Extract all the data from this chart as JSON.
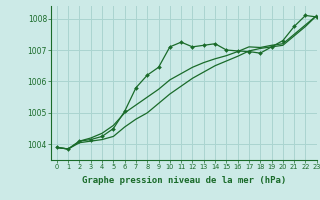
{
  "background_color": "#cceae7",
  "grid_color": "#aad4d0",
  "line_color": "#1a6b2a",
  "title": "Graphe pression niveau de la mer (hPa)",
  "xlim": [
    -0.5,
    23
  ],
  "ylim": [
    1003.5,
    1008.4
  ],
  "yticks": [
    1004,
    1005,
    1006,
    1007,
    1008
  ],
  "xticks": [
    0,
    1,
    2,
    3,
    4,
    5,
    6,
    7,
    8,
    9,
    10,
    11,
    12,
    13,
    14,
    15,
    16,
    17,
    18,
    19,
    20,
    21,
    22,
    23
  ],
  "series1_x": [
    0,
    1,
    2,
    3,
    4,
    5,
    6,
    7,
    8,
    9,
    10,
    11,
    12,
    13,
    14,
    15,
    16,
    17,
    18,
    19,
    20,
    21,
    22,
    23
  ],
  "series1_y": [
    1003.9,
    1003.85,
    1004.1,
    1004.15,
    1004.25,
    1004.5,
    1005.05,
    1005.8,
    1006.2,
    1006.45,
    1007.1,
    1007.25,
    1007.1,
    1007.15,
    1007.2,
    1007.0,
    1006.97,
    1006.95,
    1006.9,
    1007.1,
    1007.3,
    1007.75,
    1008.1,
    1008.05
  ],
  "series2_x": [
    0,
    1,
    2,
    3,
    4,
    5,
    6,
    7,
    8,
    9,
    10,
    11,
    12,
    13,
    14,
    15,
    16,
    17,
    18,
    19,
    20,
    21,
    22,
    23
  ],
  "series2_y": [
    1003.9,
    1003.85,
    1004.05,
    1004.1,
    1004.15,
    1004.25,
    1004.55,
    1004.8,
    1005.0,
    1005.3,
    1005.6,
    1005.85,
    1006.1,
    1006.3,
    1006.5,
    1006.65,
    1006.8,
    1006.97,
    1007.05,
    1007.1,
    1007.15,
    1007.45,
    1007.75,
    1008.1
  ],
  "series3_x": [
    0,
    1,
    2,
    3,
    4,
    5,
    6,
    7,
    8,
    9,
    10,
    11,
    12,
    13,
    14,
    15,
    16,
    17,
    18,
    19,
    20,
    21,
    22,
    23
  ],
  "series3_y": [
    1003.9,
    1003.85,
    1004.1,
    1004.2,
    1004.35,
    1004.6,
    1005.0,
    1005.25,
    1005.5,
    1005.75,
    1006.05,
    1006.25,
    1006.45,
    1006.6,
    1006.72,
    1006.82,
    1006.95,
    1007.1,
    1007.08,
    1007.15,
    1007.2,
    1007.5,
    1007.8,
    1008.1
  ]
}
